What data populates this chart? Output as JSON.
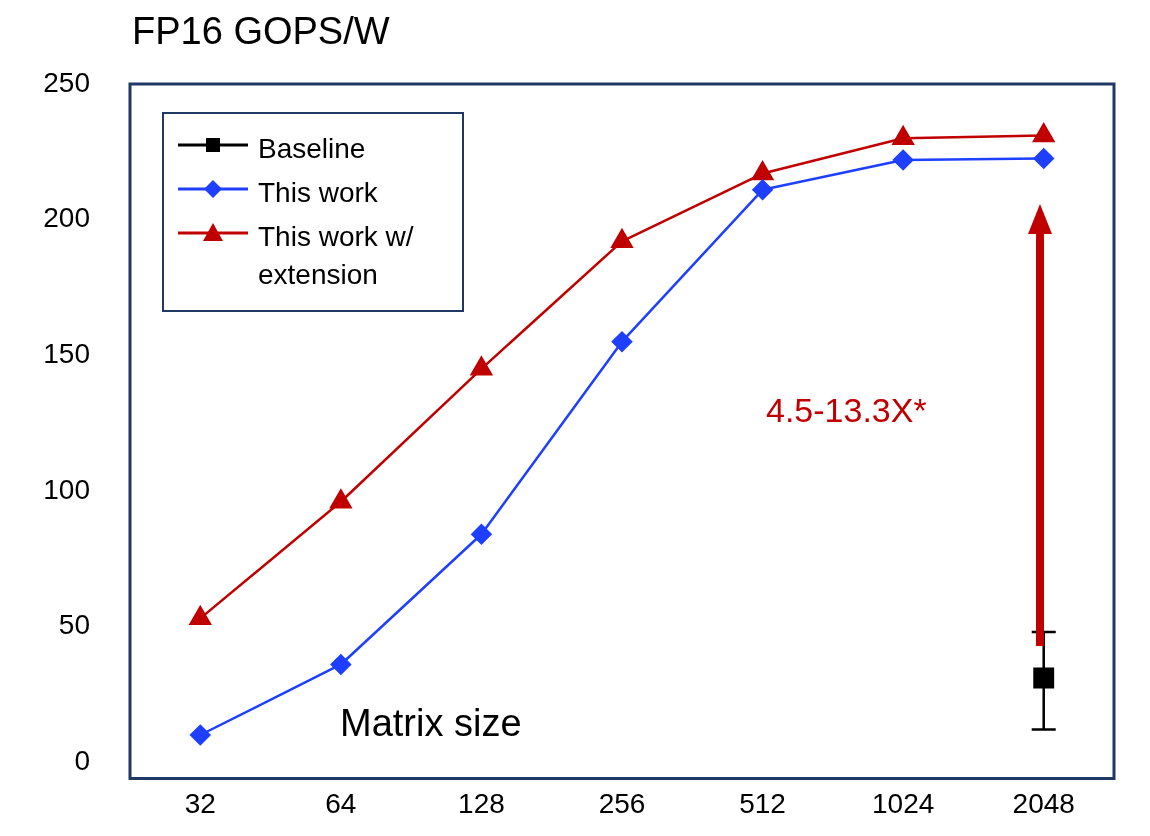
{
  "chart_data": {
    "type": "line",
    "ylabel": "FP16 GOPS/W",
    "xlabel": "Matrix size",
    "categories": [
      "32",
      "64",
      "128",
      "256",
      "512",
      "1024",
      "2048"
    ],
    "ylim": [
      -6,
      250
    ],
    "yticks": [
      0,
      50,
      100,
      150,
      200,
      250
    ],
    "grid": false,
    "legend": "top left",
    "series": [
      {
        "name": "Baseline",
        "color": "#000000",
        "marker": "square",
        "values": [
          null,
          null,
          null,
          null,
          null,
          null,
          31
        ],
        "errors": [
          null,
          null,
          null,
          null,
          null,
          null,
          [
            12,
            48
          ]
        ]
      },
      {
        "name": "This work",
        "color": "#1f3fff",
        "marker": "diamond",
        "values": [
          10,
          36,
          84,
          155,
          211,
          222,
          222.5
        ]
      },
      {
        "name": "This work w/ extension",
        "color": "#c00000",
        "marker": "triangle",
        "values": [
          53,
          96,
          145,
          192,
          217,
          230,
          231
        ]
      }
    ],
    "annotations": [
      "4.5-13.3X*"
    ]
  }
}
